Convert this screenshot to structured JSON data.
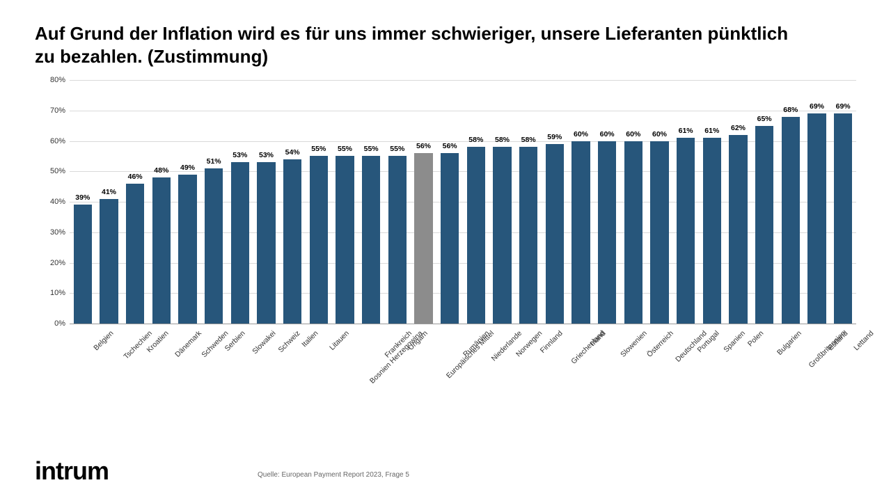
{
  "title": "Auf Grund der Inflation wird es für uns immer schwieriger, unsere Lieferanten pünktlich zu bezahlen. (Zustimmung)",
  "source": "Quelle: European Payment Report 2023, Frage 5",
  "logo_text": "intrum",
  "chart": {
    "type": "bar",
    "ylim": [
      0,
      80
    ],
    "ytick_step": 10,
    "y_suffix": "%",
    "background_color": "#ffffff",
    "grid_color": "#d9d9d9",
    "axis_color": "#999999",
    "bar_color_default": "#27567b",
    "bar_color_highlight": "#8c8c8c",
    "bar_width_ratio": 0.7,
    "title_fontsize": 26,
    "label_fontsize": 11,
    "value_label_fontsize": 10.5,
    "value_label_fontweight": "700",
    "x_label_rotation_deg": -45,
    "categories": [
      "Belgien",
      "Tschechien",
      "Kroatien",
      "Dänemark",
      "Schweden",
      "Serbien",
      "Slowakei",
      "Schweiz",
      "Italien",
      "Litauen",
      "Bosnien Herzegowina",
      "Frankreich",
      "Ungarn",
      "Europäisches Mittel",
      "Rumänien",
      "Niederlande",
      "Norwegen",
      "Finnland",
      "Griechenland",
      "Irland",
      "Slowenien",
      "Österreich",
      "Deutschland",
      "Portugal",
      "Spanien",
      "Polen",
      "Bulgarien",
      "Großbritannien",
      "Estland",
      "Lettand"
    ],
    "values": [
      39,
      41,
      46,
      48,
      49,
      51,
      53,
      53,
      54,
      55,
      55,
      55,
      55,
      56,
      56,
      58,
      58,
      58,
      59,
      60,
      60,
      60,
      60,
      61,
      61,
      62,
      65,
      68,
      69,
      69
    ],
    "highlight_index": 13
  }
}
